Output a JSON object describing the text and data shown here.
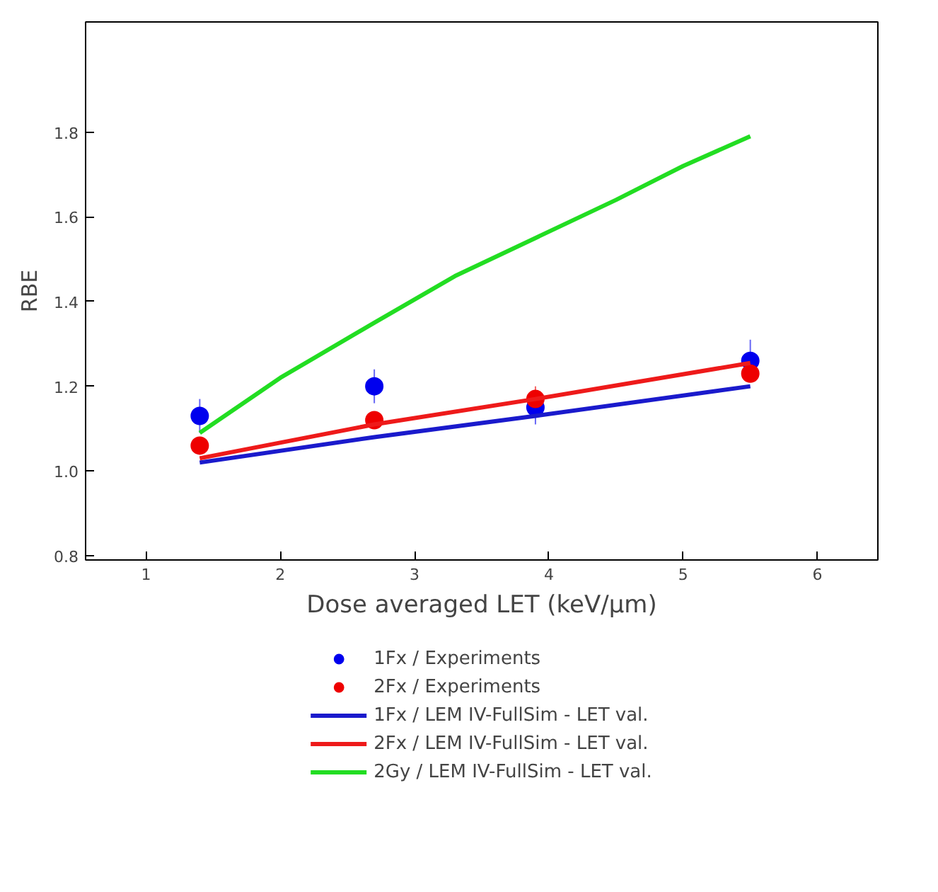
{
  "chart_data": {
    "type": "line",
    "xlabel": "Dose averaged LET (keV/µm)",
    "ylabel": "RBE",
    "xlim": [
      0.55,
      6.45
    ],
    "xticks": [
      1,
      2,
      3,
      4,
      5,
      6
    ],
    "ylim": [
      0.79,
      2.06
    ],
    "yticks": [
      0.8,
      {
        "value": 1,
        "label": "1.0"
      },
      1.2,
      1.4,
      1.6,
      1.8
    ],
    "grid": false,
    "legend": "bottom",
    "series": [
      {
        "name": "1Fx / Experiments",
        "type": "scatter",
        "marker": "circle",
        "color": "#0000ee",
        "x": [
          1.4,
          2.7,
          3.9,
          5.5
        ],
        "values": [
          1.13,
          1.2,
          1.15,
          1.26
        ],
        "errors": [
          0.04,
          0.04,
          0.04,
          0.05
        ]
      },
      {
        "name": "2Fx / Experiments",
        "type": "scatter",
        "marker": "circle",
        "color": "#ee0000",
        "x": [
          1.4,
          2.7,
          3.9,
          5.5
        ],
        "values": [
          1.06,
          1.12,
          1.17,
          1.23
        ],
        "errors": [
          0.02,
          0.02,
          0.03,
          0.02
        ]
      },
      {
        "name": "1Fx / LEM IV-FullSim - LET val.",
        "color": "#1a1acc",
        "x": [
          1.4,
          2.7,
          3.9,
          5.5
        ],
        "values": [
          1.02,
          1.08,
          1.13,
          1.2
        ]
      },
      {
        "name": "2Fx / LEM IV-FullSim - LET val.",
        "color": "#ee1a1a",
        "x": [
          1.4,
          2.7,
          3.9,
          5.5
        ],
        "values": [
          1.03,
          1.11,
          1.17,
          1.255
        ]
      },
      {
        "name": "2Gy / LEM IV-FullSim - LET val.",
        "color": "#22dd22",
        "x": [
          1.4,
          2.0,
          2.7,
          3.3,
          3.9,
          4.5,
          5.0,
          5.5
        ],
        "values": [
          1.09,
          1.22,
          1.35,
          1.46,
          1.55,
          1.64,
          1.72,
          1.79
        ]
      }
    ]
  }
}
